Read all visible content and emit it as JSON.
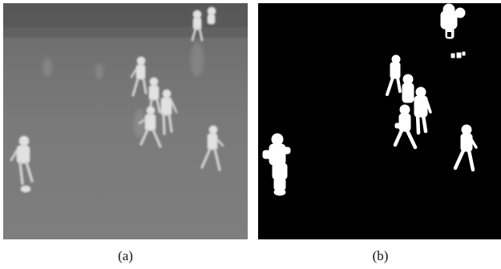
{
  "figure": {
    "panels": [
      {
        "caption": "(a)",
        "kind": "thermal-infrared-frame"
      },
      {
        "caption": "(b)",
        "kind": "binary-segmentation-mask"
      }
    ],
    "colors": {
      "thermal_background": "#7a7a7a",
      "thermal_top_band": "#5c5c5c",
      "figure_bright": "#e6e6e6",
      "mask_background": "#000000",
      "mask_foreground": "#ffffff"
    }
  }
}
